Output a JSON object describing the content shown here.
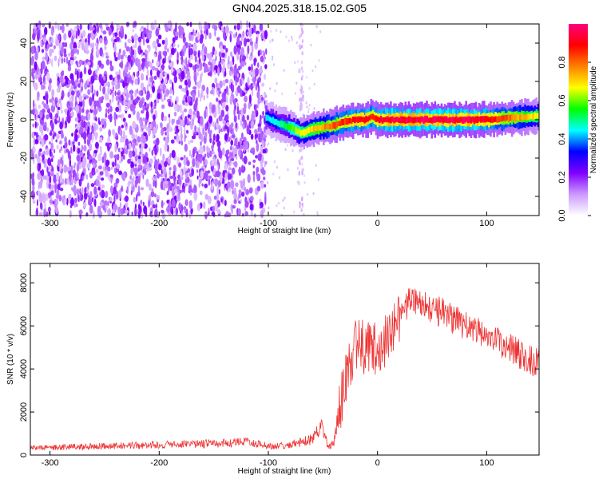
{
  "title": "GN04.2025.318.15.02.G05",
  "chart_data": [
    {
      "type": "heatmap",
      "xlabel": "Height of straight line (km)",
      "ylabel": "Frequency (Hz)",
      "xlim": [
        -318,
        148
      ],
      "ylim": [
        -50,
        50
      ],
      "xticks": [
        -300,
        -200,
        -100,
        0,
        100
      ],
      "yticks": [
        -40,
        -20,
        0,
        20,
        40
      ],
      "colorbar": {
        "label": "Normalized spectral amplitude",
        "range": [
          0,
          1
        ],
        "ticks": [
          0.0,
          0.2,
          0.4,
          0.6,
          0.8
        ],
        "colormap": [
          "#ffffff",
          "#cc99ff",
          "#8000ff",
          "#0000ff",
          "#00ffff",
          "#00ff00",
          "#ffff00",
          "#ff8000",
          "#ff0000",
          "#ff0080"
        ]
      },
      "noise_region": {
        "x": [
          -318,
          -102
        ],
        "amplitude": 0.2
      },
      "ridge": {
        "x": [
          -102,
          -90,
          -80,
          -70,
          -60,
          -50,
          -40,
          -30,
          -20,
          -10,
          -5,
          0,
          10,
          30,
          50,
          80,
          100,
          120,
          148
        ],
        "y": [
          1,
          -2,
          -4,
          -7,
          -5,
          -4,
          -3,
          -1,
          0,
          0,
          2,
          0,
          0,
          0,
          0,
          0,
          0,
          1,
          2
        ],
        "amplitude": [
          0.45,
          0.5,
          0.6,
          0.7,
          0.75,
          0.8,
          0.85,
          0.9,
          0.95,
          0.95,
          0.9,
          0.95,
          0.98,
          1.0,
          1.0,
          1.0,
          0.95,
          0.85,
          0.7
        ]
      }
    },
    {
      "type": "line",
      "xlabel": "Height of straight line (km)",
      "ylabel": "SNR (10 * v/v)",
      "xlim": [
        -318,
        148
      ],
      "ylim": [
        0,
        8900
      ],
      "xticks": [
        -300,
        -200,
        -100,
        0,
        100
      ],
      "yticks": [
        0,
        2000,
        4000,
        6000,
        8000
      ],
      "color": "#ee3333",
      "x": [
        -318,
        -300,
        -250,
        -200,
        -150,
        -120,
        -100,
        -80,
        -60,
        -50,
        -45,
        -40,
        -35,
        -30,
        -25,
        -20,
        -10,
        0,
        10,
        20,
        30,
        40,
        50,
        60,
        80,
        100,
        120,
        148
      ],
      "y": [
        300,
        300,
        350,
        400,
        450,
        500,
        350,
        400,
        600,
        1200,
        300,
        500,
        2000,
        3500,
        4000,
        5000,
        5000,
        5000,
        5500,
        6500,
        7200,
        7000,
        6800,
        6600,
        6000,
        5500,
        5000,
        4200
      ]
    }
  ]
}
